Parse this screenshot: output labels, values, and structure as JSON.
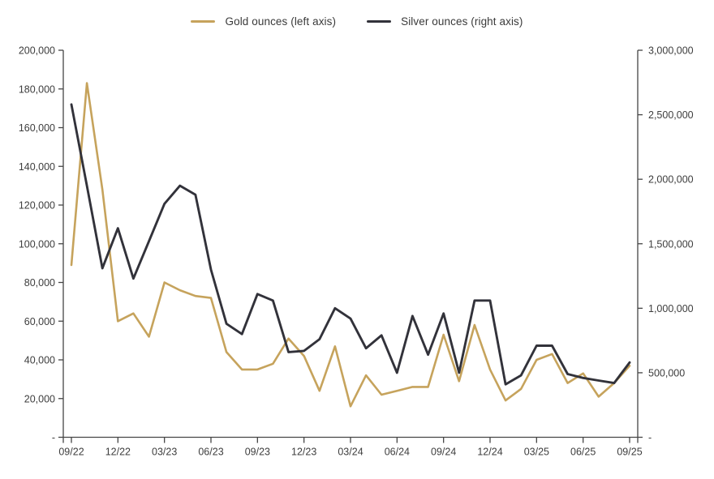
{
  "legend": {
    "items": [
      {
        "label": "Gold ounces (left axis)",
        "color": "#C6A35C"
      },
      {
        "label": "Silver ounces (right axis)",
        "color": "#32323A"
      }
    ]
  },
  "chart_data": {
    "type": "line",
    "title": "",
    "xlabel": "",
    "ylabel_left": "",
    "ylabel_right": "",
    "grid": false,
    "legend_position": "top",
    "x": [
      "09/22",
      "10/22",
      "11/22",
      "12/22",
      "01/23",
      "02/23",
      "03/23",
      "04/23",
      "05/23",
      "06/23",
      "07/23",
      "08/23",
      "09/23",
      "10/23",
      "11/23",
      "12/23",
      "01/24",
      "02/24",
      "03/24",
      "04/24",
      "05/24",
      "06/24",
      "07/24",
      "08/24",
      "09/24",
      "10/24",
      "11/24",
      "12/24",
      "01/25",
      "02/25",
      "03/25",
      "04/25",
      "05/25",
      "06/25",
      "07/25",
      "08/25",
      "09/25"
    ],
    "x_tick_labels": [
      "09/22",
      "12/22",
      "03/23",
      "06/23",
      "09/23",
      "12/23",
      "03/24",
      "06/24",
      "09/24",
      "12/24",
      "03/25",
      "06/25",
      "09/25"
    ],
    "x_label_every": 3,
    "series": [
      {
        "name": "Gold ounces (left axis)",
        "axis": "left",
        "color": "#C6A35C",
        "values": [
          89000,
          183000,
          128000,
          60000,
          64000,
          52000,
          80000,
          76000,
          73000,
          72000,
          44000,
          35000,
          35000,
          38000,
          51000,
          42000,
          24000,
          47000,
          16000,
          32000,
          22000,
          24000,
          26000,
          26000,
          53000,
          29000,
          58000,
          35000,
          19000,
          25000,
          40000,
          43000,
          28000,
          33000,
          21000,
          28000,
          37000
        ]
      },
      {
        "name": "Silver ounces (right axis)",
        "axis": "right",
        "color": "#32323A",
        "values": [
          2580000,
          1950000,
          1310000,
          1620000,
          1230000,
          1520000,
          1810000,
          1950000,
          1880000,
          1300000,
          880000,
          800000,
          1110000,
          1060000,
          660000,
          670000,
          760000,
          1000000,
          920000,
          690000,
          790000,
          500000,
          940000,
          640000,
          960000,
          500000,
          1060000,
          1060000,
          410000,
          480000,
          710000,
          710000,
          490000,
          460000,
          440000,
          420000,
          580000
        ]
      }
    ],
    "left_axis": {
      "min": 0,
      "max": 200000,
      "step": 20000,
      "zero_label": "-",
      "tick_labels": [
        "-",
        "20,000",
        "40,000",
        "60,000",
        "80,000",
        "100,000",
        "120,000",
        "140,000",
        "160,000",
        "180,000",
        "200,000"
      ]
    },
    "right_axis": {
      "min": 0,
      "max": 3000000,
      "step": 500000,
      "zero_label": "-",
      "tick_labels": [
        "-",
        "500,000",
        "1,000,000",
        "1,500,000",
        "2,000,000",
        "2,500,000",
        "3,000,000"
      ]
    }
  }
}
